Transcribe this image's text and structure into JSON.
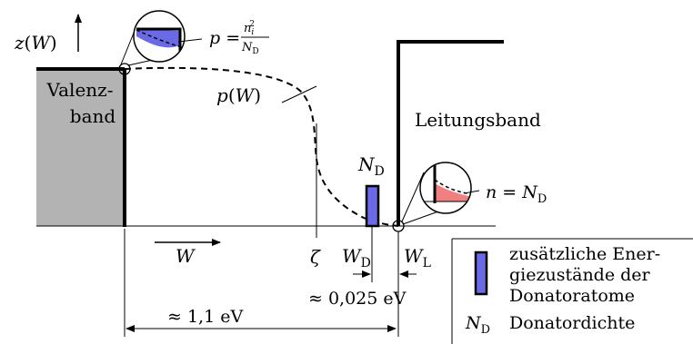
{
  "diagram": {
    "axis_label": "z(W)",
    "valence_band": {
      "line1": "Valenz-",
      "line2": "band",
      "fill": "#b3b3b3"
    },
    "conduction_band": {
      "label": "Leitungsband"
    },
    "occupancy_curve": {
      "label": "p(W)"
    },
    "hole_density": {
      "lhs": "p",
      "numerator": "n",
      "num_sub": "i",
      "num_sup": "2",
      "denominator": "N",
      "den_sub": "D",
      "fill": "#6a6ae6"
    },
    "electron_density": {
      "lhs": "n",
      "rhs": "N",
      "rhs_sub": "D",
      "fill": "#f08080"
    },
    "donor_level": {
      "label": "N",
      "label_sub": "D",
      "fill": "#6a6ae6"
    },
    "energy_axis": {
      "label": "W"
    },
    "fermi_level": {
      "label": "ζ"
    },
    "donor_energy": {
      "label": "W",
      "sub": "D"
    },
    "conduction_edge": {
      "label": "W",
      "sub": "L"
    },
    "gap_donor": {
      "label": "≈ 0,025 eV"
    },
    "gap_band": {
      "label": "≈ 1,1 eV"
    },
    "legend": {
      "donor_entry": {
        "line1": "zusätzliche Ener-",
        "line2": "giezustände der",
        "line3": "Donatoratome"
      },
      "density_entry": {
        "symbol": "N",
        "symbol_sub": "D",
        "text": "Donatordichte"
      }
    }
  }
}
